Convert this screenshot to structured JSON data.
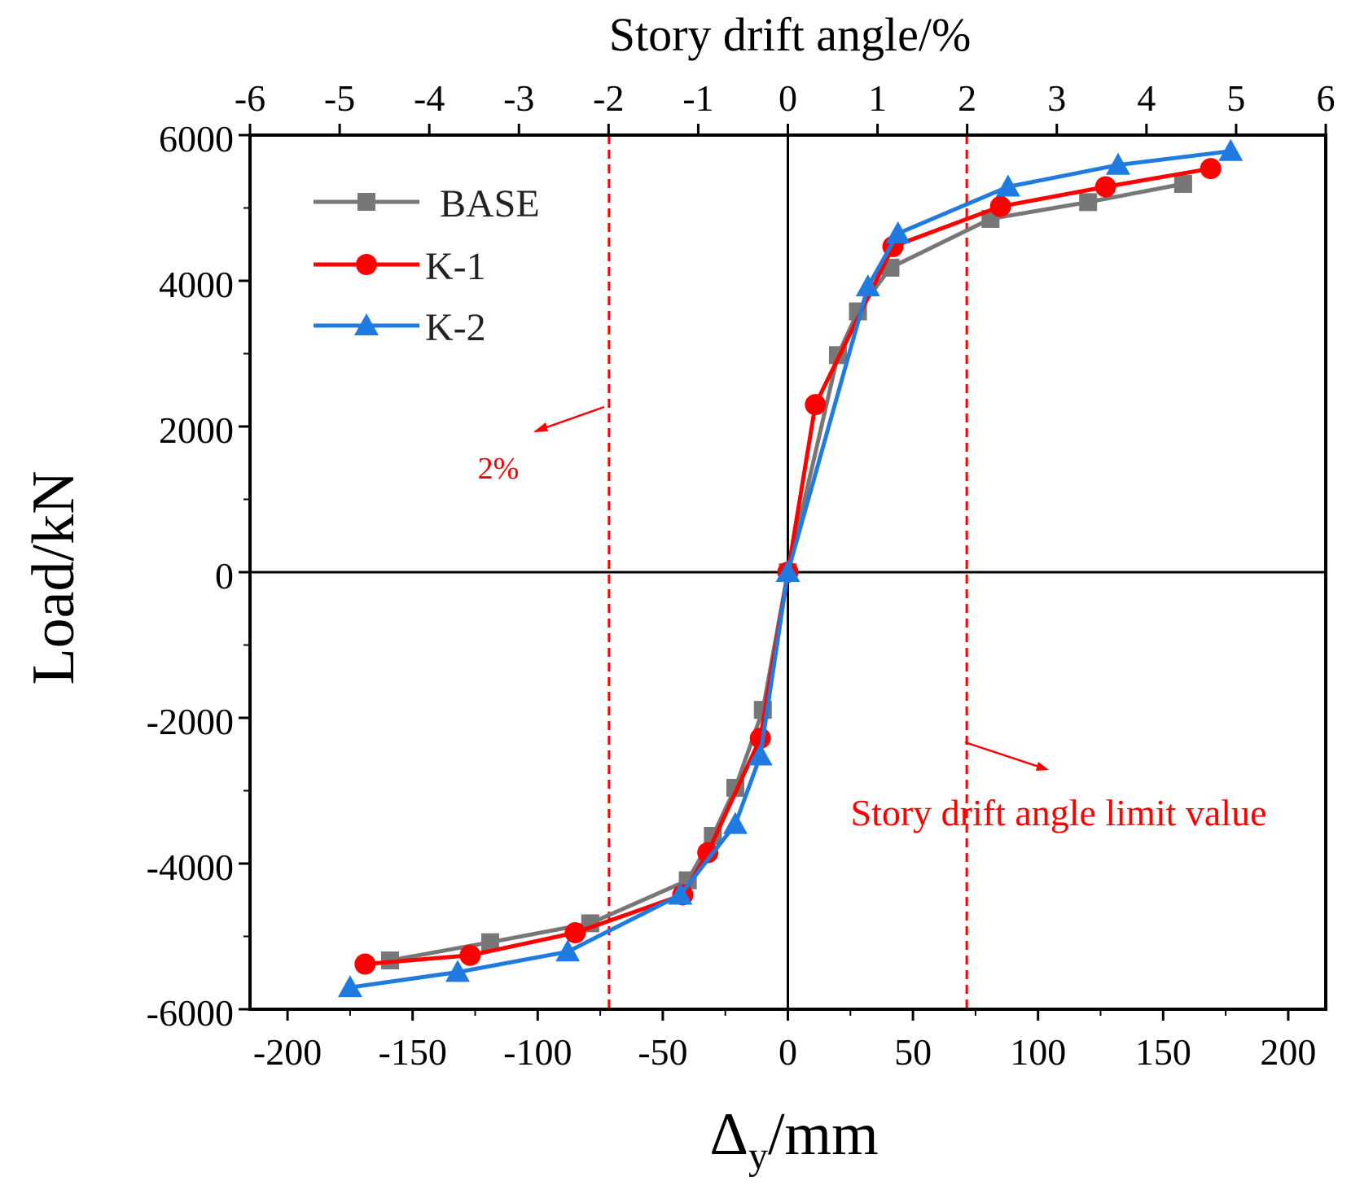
{
  "chart_data": {
    "type": "line",
    "title": "",
    "xlabel": "Δ",
    "xlabel_sub": "y",
    "xlabel_unit": "/mm",
    "ylabel": "Load/kN",
    "top_xlabel": "Story drift angle/%",
    "xlim": [
      -215,
      215
    ],
    "ylim": [
      -6000,
      6000
    ],
    "top_xlim": [
      -6,
      6
    ],
    "x_ticks": [
      -200,
      -150,
      -100,
      -50,
      0,
      50,
      100,
      150,
      200
    ],
    "x_tick_labels": [
      "-200",
      "-150",
      "-100",
      "-50",
      "0",
      "50",
      "100",
      "150",
      "200"
    ],
    "y_ticks": [
      -6000,
      -4000,
      -2000,
      0,
      2000,
      4000,
      6000
    ],
    "y_tick_labels": [
      "-6000",
      "-4000",
      "-2000",
      "0",
      "2000",
      "4000",
      "6000"
    ],
    "top_ticks": [
      -6,
      -5,
      -4,
      -3,
      -2,
      -1,
      0,
      1,
      2,
      3,
      4,
      5,
      6
    ],
    "top_tick_labels": [
      "-6",
      "-5",
      "-4",
      "-3",
      "-2",
      "-1",
      "0",
      "1",
      "2",
      "3",
      "4",
      "5",
      "6"
    ],
    "grid": false,
    "legend_position": "top-left",
    "reference_lines": [
      {
        "x": -71.5,
        "label": "2%",
        "color": "#ff0000"
      },
      {
        "x": 71.5,
        "label": "Story drift angle limit value",
        "color": "#ff0000"
      }
    ],
    "series": [
      {
        "name": "BASE",
        "color": "#777777",
        "marker": "square",
        "x": [
          -159,
          -119,
          -79,
          -40,
          -30,
          -21,
          -10,
          0,
          20,
          28,
          41,
          81,
          120,
          158
        ],
        "y": [
          -5330,
          -5080,
          -4820,
          -4230,
          -3620,
          -2960,
          -1890,
          0,
          2980,
          3580,
          4180,
          4850,
          5080,
          5330
        ]
      },
      {
        "name": "K-1",
        "color": "#ff0000",
        "marker": "circle",
        "x": [
          -169,
          -127,
          -85,
          -42,
          -32,
          -11,
          0,
          11,
          42,
          85,
          127,
          169
        ],
        "y": [
          -5380,
          -5260,
          -4950,
          -4430,
          -3850,
          -2280,
          0,
          2300,
          4470,
          5020,
          5290,
          5540
        ]
      },
      {
        "name": "K-2",
        "color": "#1f7be0",
        "marker": "triangle",
        "x": [
          -175,
          -132,
          -88,
          -43,
          -21,
          -11,
          0,
          32,
          44,
          88,
          132,
          177
        ],
        "y": [
          -5700,
          -5490,
          -5210,
          -4430,
          -3460,
          -2520,
          0,
          3920,
          4650,
          5290,
          5590,
          5780
        ]
      }
    ]
  }
}
